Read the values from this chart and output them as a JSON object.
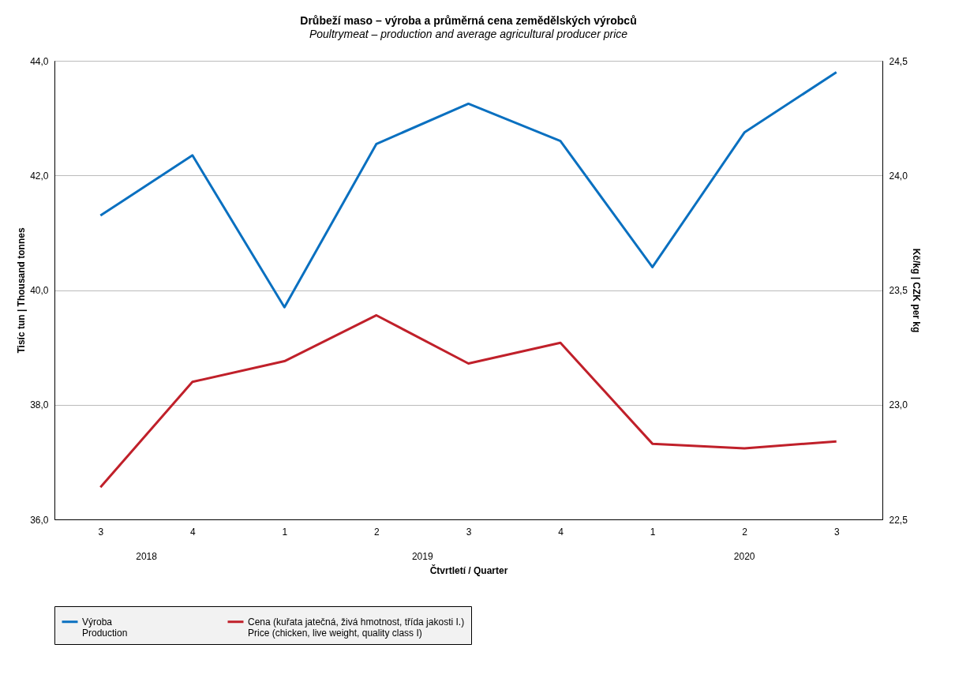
{
  "chart_data": {
    "type": "line",
    "title": "Drůbeží maso – výroba a průměrná cena zemědělských výrobců",
    "subtitle": "Poultrymeat – production and average agricultural producer price",
    "xlabel": "Čtvrtletí / Quarter",
    "ylabel": "Tisíc tun | Thousand tonnes",
    "y2label": "Kč/kg | CZK per kg",
    "categories": [
      "3",
      "4",
      "1",
      "2",
      "3",
      "4",
      "1",
      "2",
      "3"
    ],
    "annotations": [
      "2018",
      "2019",
      "2020"
    ],
    "series": [
      {
        "name": "Výroba\nProduction",
        "color": "#0a70c0",
        "values": [
          41.3,
          42.35,
          39.7,
          42.55,
          43.25,
          42.6,
          40.4,
          42.75,
          43.8
        ]
      },
      {
        "name": "Cena (kuřata jatečná, živá hmotnost, třída jakosti I.)\nPrice (chicken, live weight, quality class I)",
        "color": "#c0202a",
        "axis": "y2",
        "values": [
          22.64,
          23.1,
          23.19,
          23.39,
          23.18,
          23.27,
          22.83,
          22.81,
          22.84
        ]
      }
    ],
    "ylim": [
      36,
      44
    ],
    "yticks": [
      {
        "value": 36,
        "label": "36,0"
      },
      {
        "value": 38,
        "label": "38,0"
      },
      {
        "value": 40,
        "label": "40,0"
      },
      {
        "value": 42,
        "label": "42,0"
      },
      {
        "value": 44,
        "label": "44,0"
      }
    ],
    "y2lim": [
      22.5,
      24.5
    ],
    "y2ticks": [
      {
        "value": 22.5,
        "label": "22,5"
      },
      {
        "value": 23,
        "label": "23,0"
      },
      {
        "value": 23.5,
        "label": "23,5"
      },
      {
        "value": 24,
        "label": "24,0"
      },
      {
        "value": 24.5,
        "label": "24,5"
      }
    ],
    "grid": "y",
    "legend": "bottom"
  }
}
